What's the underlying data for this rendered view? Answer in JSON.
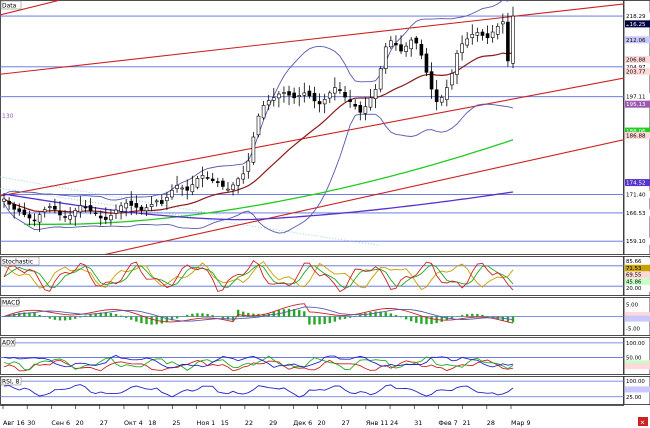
{
  "chart_data": [
    {
      "type": "candlestick",
      "panel": "price",
      "title": "Data",
      "label_130": "130",
      "ylim": [
        156,
        222
      ],
      "x_ticks": [
        "Авг 16",
        "30",
        "Сен 6",
        "20",
        "27",
        "Окт 4",
        "18",
        "25",
        "Ноя 1",
        "15",
        "22",
        "29",
        "Дек 6",
        "20",
        "27",
        "Янв 11",
        "24",
        "31",
        "Фев 7",
        "21",
        "28",
        "Мар 9"
      ],
      "close": [
        170.2,
        168.8,
        167.5,
        166.9,
        166.1,
        165.2,
        164.6,
        166.1,
        167.4,
        168.2,
        167.5,
        166.0,
        165.4,
        165.9,
        167.2,
        168.5,
        168.1,
        167.0,
        166.4,
        165.2,
        164.8,
        165.9,
        167.3,
        168.4,
        169.1,
        168.5,
        168.0,
        167.3,
        167.9,
        168.8,
        169.7,
        169.0,
        170.6,
        172.5,
        173.8,
        173.1,
        172.5,
        174.0,
        175.6,
        176.4,
        175.8,
        175.0,
        174.5,
        173.5,
        172.8,
        173.9,
        175.5,
        176.8,
        180.2,
        186.5,
        192.0,
        194.8,
        196.1,
        196.9,
        197.8,
        198.2,
        197.5,
        196.8,
        197.4,
        198.1,
        197.3,
        196.0,
        195.2,
        196.4,
        198.1,
        199.5,
        198.7,
        197.0,
        195.8,
        194.6,
        193.0,
        194.5,
        196.8,
        199.0,
        204.5,
        210.2,
        211.8,
        210.7,
        209.1,
        210.4,
        212.0,
        211.2,
        208.0,
        203.5,
        199.1,
        195.8,
        196.9,
        199.5,
        203.2,
        208.5,
        211.0,
        212.3,
        213.5,
        214.0,
        213.2,
        212.6,
        214.1,
        215.6,
        216.8,
        206.5,
        218.3
      ],
      "reference_levels": [
        218.29,
        216.25,
        212.06,
        206.88,
        204.97,
        203.77,
        197.11,
        195.13,
        188.06,
        186.88,
        174.52,
        171.4,
        166.53,
        159.1
      ],
      "bollinger_width_pct": 4.2,
      "ma_fast_period": 20,
      "ma_slow_period": 50,
      "ma_long_period": 100,
      "colors": {
        "candle": "#000000",
        "bollinger": "#5a5ab0",
        "ma_fast": "#8b1a1a",
        "ma_slow": "#22cc22",
        "ma_long": "#5533cc",
        "channel": "#cc2222",
        "guide": "#5a6ad8"
      }
    },
    {
      "type": "line",
      "panel": "stochastic",
      "title": "Stochastic",
      "ylim": [
        0,
        100
      ],
      "reference_levels": [
        20,
        80
      ],
      "period": 14,
      "colors": {
        "k": "#cc2222",
        "d": "#22aa22",
        "slow": "#c8a000",
        "ref": "#5a6ad8"
      }
    },
    {
      "type": "histogram",
      "panel": "macd",
      "title": "MACD",
      "ylim": [
        -7,
        7
      ],
      "tick_labels": [
        "5.00",
        "-5.00"
      ],
      "colors": {
        "macd": "#cc2222",
        "signal": "#5a5ab0",
        "hist": "#22aa22",
        "ref": "#5a6ad8"
      }
    },
    {
      "type": "line",
      "panel": "adx",
      "title": "ADX",
      "ylim": [
        0,
        110
      ],
      "tick_labels": [
        "100.00",
        "50.00"
      ],
      "colors": {
        "adx": "#2222cc",
        "plus": "#22aa22",
        "minus": "#cc2222",
        "ref": "#5a6ad8"
      }
    },
    {
      "type": "line",
      "panel": "rsi",
      "title": "RSI, 8",
      "ylim": [
        0,
        110
      ],
      "tick_labels": [
        "100.00",
        "25.00"
      ],
      "period": 8,
      "colors": {
        "rsi": "#2222cc",
        "ref": "#5a6ad8"
      }
    }
  ]
}
